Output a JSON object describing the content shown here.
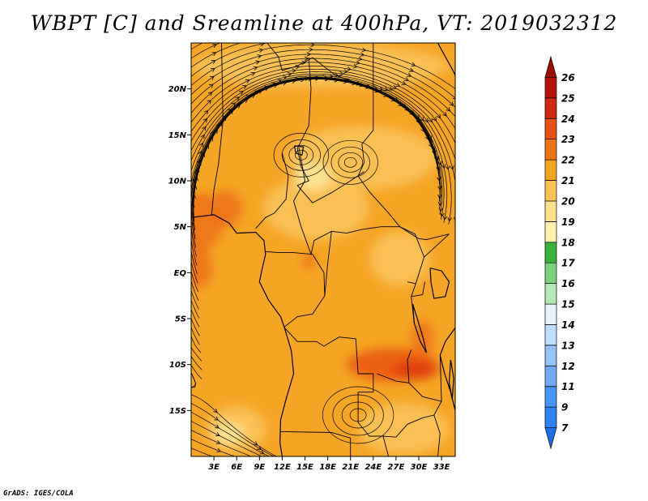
{
  "title": "WBPT [C] and Sreamline at 400hPa, VT: 2019032312",
  "credit": "GrADS: IGES/COLA",
  "map": {
    "lon_range": [
      0,
      34.8
    ],
    "lat_range": [
      -20,
      25
    ],
    "lat_ticks": [
      {
        "value": 20,
        "label": "20N"
      },
      {
        "value": 15,
        "label": "15N"
      },
      {
        "value": 10,
        "label": "10N"
      },
      {
        "value": 5,
        "label": "5N"
      },
      {
        "value": 0,
        "label": "EQ"
      },
      {
        "value": -5,
        "label": "5S"
      },
      {
        "value": -10,
        "label": "10S"
      },
      {
        "value": -15,
        "label": "15S"
      }
    ],
    "lon_ticks": [
      {
        "value": 3,
        "label": "3E"
      },
      {
        "value": 6,
        "label": "6E"
      },
      {
        "value": 9,
        "label": "9E"
      },
      {
        "value": 12,
        "label": "12E"
      },
      {
        "value": 15,
        "label": "15E"
      },
      {
        "value": 18,
        "label": "18E"
      },
      {
        "value": 21,
        "label": "21E"
      },
      {
        "value": 24,
        "label": "24E"
      },
      {
        "value": 27,
        "label": "27E"
      },
      {
        "value": 30,
        "label": "30E"
      },
      {
        "value": 33,
        "label": "33E"
      }
    ],
    "base_color": "#f5a524",
    "shading": [
      {
        "name": "hot-west-coast",
        "lon": 1.2,
        "lat": 5.5,
        "rlon": 3.0,
        "rlat": 3.2,
        "color": "#ee7418"
      },
      {
        "name": "hot-guinea",
        "lon": 4.5,
        "lat": 7.0,
        "rlon": 2.2,
        "rlat": 2.0,
        "color": "#ee7418"
      },
      {
        "name": "hot-west-eq",
        "lon": 1.0,
        "lat": 0.5,
        "rlon": 1.8,
        "rlat": 2.2,
        "color": "#ee7418"
      },
      {
        "name": "hot-central",
        "lon": 15.5,
        "lat": 1.2,
        "rlon": 0.9,
        "rlat": 0.8,
        "color": "#ee7418"
      },
      {
        "name": "hot-mozambique",
        "lon": 26.5,
        "lat": -10.0,
        "rlon": 6.0,
        "rlat": 1.8,
        "color": "#ea5a12"
      },
      {
        "name": "hot-mozambique-core",
        "lon": 29.5,
        "lat": -10.6,
        "rlon": 3.0,
        "rlat": 1.0,
        "color": "#dd3a10"
      },
      {
        "name": "hot-coast-east",
        "lon": 30.5,
        "lat": -7.2,
        "rlon": 1.5,
        "rlat": 2.0,
        "color": "#ee7418"
      },
      {
        "name": "cool-north-band",
        "lon": 17,
        "lat": 22.5,
        "rlon": 17,
        "rlat": 2.4,
        "color": "#fbc35a"
      },
      {
        "name": "cool-sahel",
        "lon": 22.5,
        "lat": 12.5,
        "rlon": 10,
        "rlat": 3.5,
        "color": "#fbc35a"
      },
      {
        "name": "cool-center",
        "lon": 16.5,
        "lat": 7.0,
        "rlon": 7.0,
        "rlat": 3.5,
        "color": "#fbc35a"
      },
      {
        "name": "cool-east-eq",
        "lon": 27.5,
        "lat": 1.5,
        "rlon": 4.0,
        "rlat": 3.0,
        "color": "#fbc35a"
      },
      {
        "name": "cool-south",
        "lon": 28.0,
        "lat": -17.0,
        "rlon": 6.0,
        "rlat": 2.8,
        "color": "#fbc35a"
      },
      {
        "name": "cool-southwest",
        "lon": 6.0,
        "lat": -17.0,
        "rlon": 4.0,
        "rlat": 2.5,
        "color": "#fbc35a"
      },
      {
        "name": "pale-spot-a",
        "lon": 16.0,
        "lat": 10.5,
        "rlon": 2.5,
        "rlat": 1.5,
        "color": "#fde79a"
      },
      {
        "name": "pale-spot-b",
        "lon": 5.0,
        "lat": -17.5,
        "rlon": 2.0,
        "rlat": 1.2,
        "color": "#fde79a"
      }
    ],
    "vortices": [
      {
        "name": "anticyclone-west-africa",
        "lon": 14.5,
        "lat": 12.8
      },
      {
        "name": "anticyclone-sahel",
        "lon": 21.0,
        "lat": 12.0
      },
      {
        "name": "gyre-south",
        "lon": 22.0,
        "lat": -15.5
      }
    ],
    "coast_color": "#000000",
    "streamline_color": "#000000"
  },
  "colorbar": {
    "labels": [
      "7",
      "9",
      "11",
      "12",
      "13",
      "14",
      "15",
      "16",
      "17",
      "18",
      "19",
      "20",
      "21",
      "22",
      "23",
      "24",
      "25",
      "26"
    ],
    "colors": [
      "#1e6ee6",
      "#2d82f0",
      "#4696f5",
      "#6eaaf8",
      "#96c3fa",
      "#bedcfc",
      "#e6f4fa",
      "#b4e6b4",
      "#78d278",
      "#3cb43c",
      "#fff0aa",
      "#fde08c",
      "#fbc35a",
      "#f5a524",
      "#ee7418",
      "#e65014",
      "#d22810",
      "#b4140a",
      "#a00c06"
    ]
  }
}
